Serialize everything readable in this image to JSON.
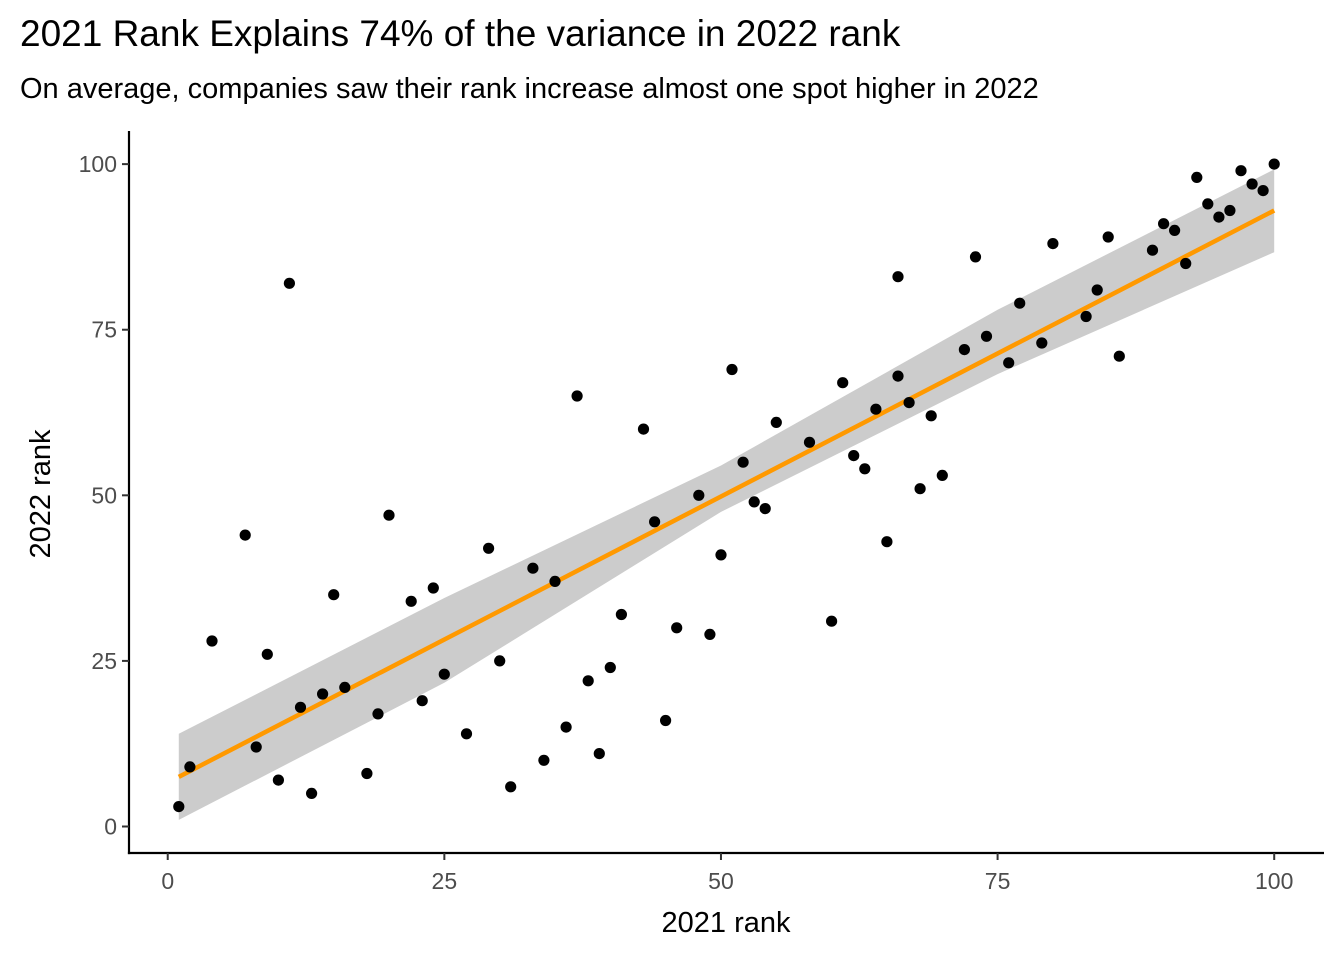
{
  "chart_data": {
    "type": "scatter",
    "title": "2021 Rank Explains 74% of the variance in 2022 rank",
    "subtitle": "On average, companies saw their rank increase almost one spot higher in 2022",
    "xlabel": "2021 rank",
    "ylabel": "2022 rank",
    "xlim": [
      -3.5,
      104.5
    ],
    "ylim": [
      -4,
      105
    ],
    "xticks": [
      0,
      25,
      50,
      75,
      100
    ],
    "yticks": [
      0,
      25,
      50,
      75,
      100
    ],
    "grid": false,
    "legend": "none",
    "series": [
      {
        "type": "scatter",
        "color": "#000000",
        "points": [
          [
            1,
            3
          ],
          [
            2,
            9
          ],
          [
            4,
            28
          ],
          [
            7,
            44
          ],
          [
            8,
            12
          ],
          [
            9,
            26
          ],
          [
            10,
            7
          ],
          [
            11,
            82
          ],
          [
            12,
            18
          ],
          [
            13,
            5
          ],
          [
            14,
            20
          ],
          [
            15,
            35
          ],
          [
            16,
            21
          ],
          [
            18,
            8
          ],
          [
            19,
            17
          ],
          [
            20,
            47
          ],
          [
            22,
            34
          ],
          [
            23,
            19
          ],
          [
            24,
            36
          ],
          [
            25,
            23
          ],
          [
            27,
            14
          ],
          [
            29,
            42
          ],
          [
            30,
            25
          ],
          [
            31,
            6
          ],
          [
            33,
            39
          ],
          [
            34,
            10
          ],
          [
            35,
            37
          ],
          [
            36,
            15
          ],
          [
            37,
            65
          ],
          [
            38,
            22
          ],
          [
            39,
            11
          ],
          [
            40,
            24
          ],
          [
            41,
            32
          ],
          [
            43,
            60
          ],
          [
            44,
            46
          ],
          [
            45,
            16
          ],
          [
            46,
            30
          ],
          [
            48,
            50
          ],
          [
            49,
            29
          ],
          [
            50,
            41
          ],
          [
            51,
            69
          ],
          [
            52,
            55
          ],
          [
            53,
            49
          ],
          [
            54,
            48
          ],
          [
            55,
            61
          ],
          [
            58,
            58
          ],
          [
            60,
            31
          ],
          [
            61,
            67
          ],
          [
            62,
            56
          ],
          [
            63,
            54
          ],
          [
            64,
            63
          ],
          [
            65,
            43
          ],
          [
            66,
            83
          ],
          [
            66,
            68
          ],
          [
            67,
            64
          ],
          [
            68,
            51
          ],
          [
            69,
            62
          ],
          [
            70,
            53
          ],
          [
            72,
            72
          ],
          [
            73,
            86
          ],
          [
            74,
            74
          ],
          [
            76,
            70
          ],
          [
            77,
            79
          ],
          [
            79,
            73
          ],
          [
            80,
            88
          ],
          [
            83,
            77
          ],
          [
            84,
            81
          ],
          [
            85,
            89
          ],
          [
            86,
            71
          ],
          [
            89,
            87
          ],
          [
            90,
            91
          ],
          [
            91,
            90
          ],
          [
            92,
            85
          ],
          [
            93,
            98
          ],
          [
            94,
            94
          ],
          [
            95,
            92
          ],
          [
            96,
            93
          ],
          [
            97,
            99
          ],
          [
            98,
            97
          ],
          [
            99,
            96
          ],
          [
            100,
            100
          ]
        ]
      },
      {
        "type": "line",
        "smooth": "linear fit",
        "color": "#ff9900",
        "start": [
          1,
          7.5
        ],
        "end": [
          100,
          93
        ],
        "confidence_band": {
          "color": "#cccccc",
          "points": [
            [
              1,
              1,
              14
            ],
            [
              25,
              21.7,
              34.5
            ],
            [
              50,
              47.5,
              54.5
            ],
            [
              75,
              68.3,
              78
            ],
            [
              100,
              86.7,
              99.2
            ]
          ]
        }
      }
    ]
  }
}
